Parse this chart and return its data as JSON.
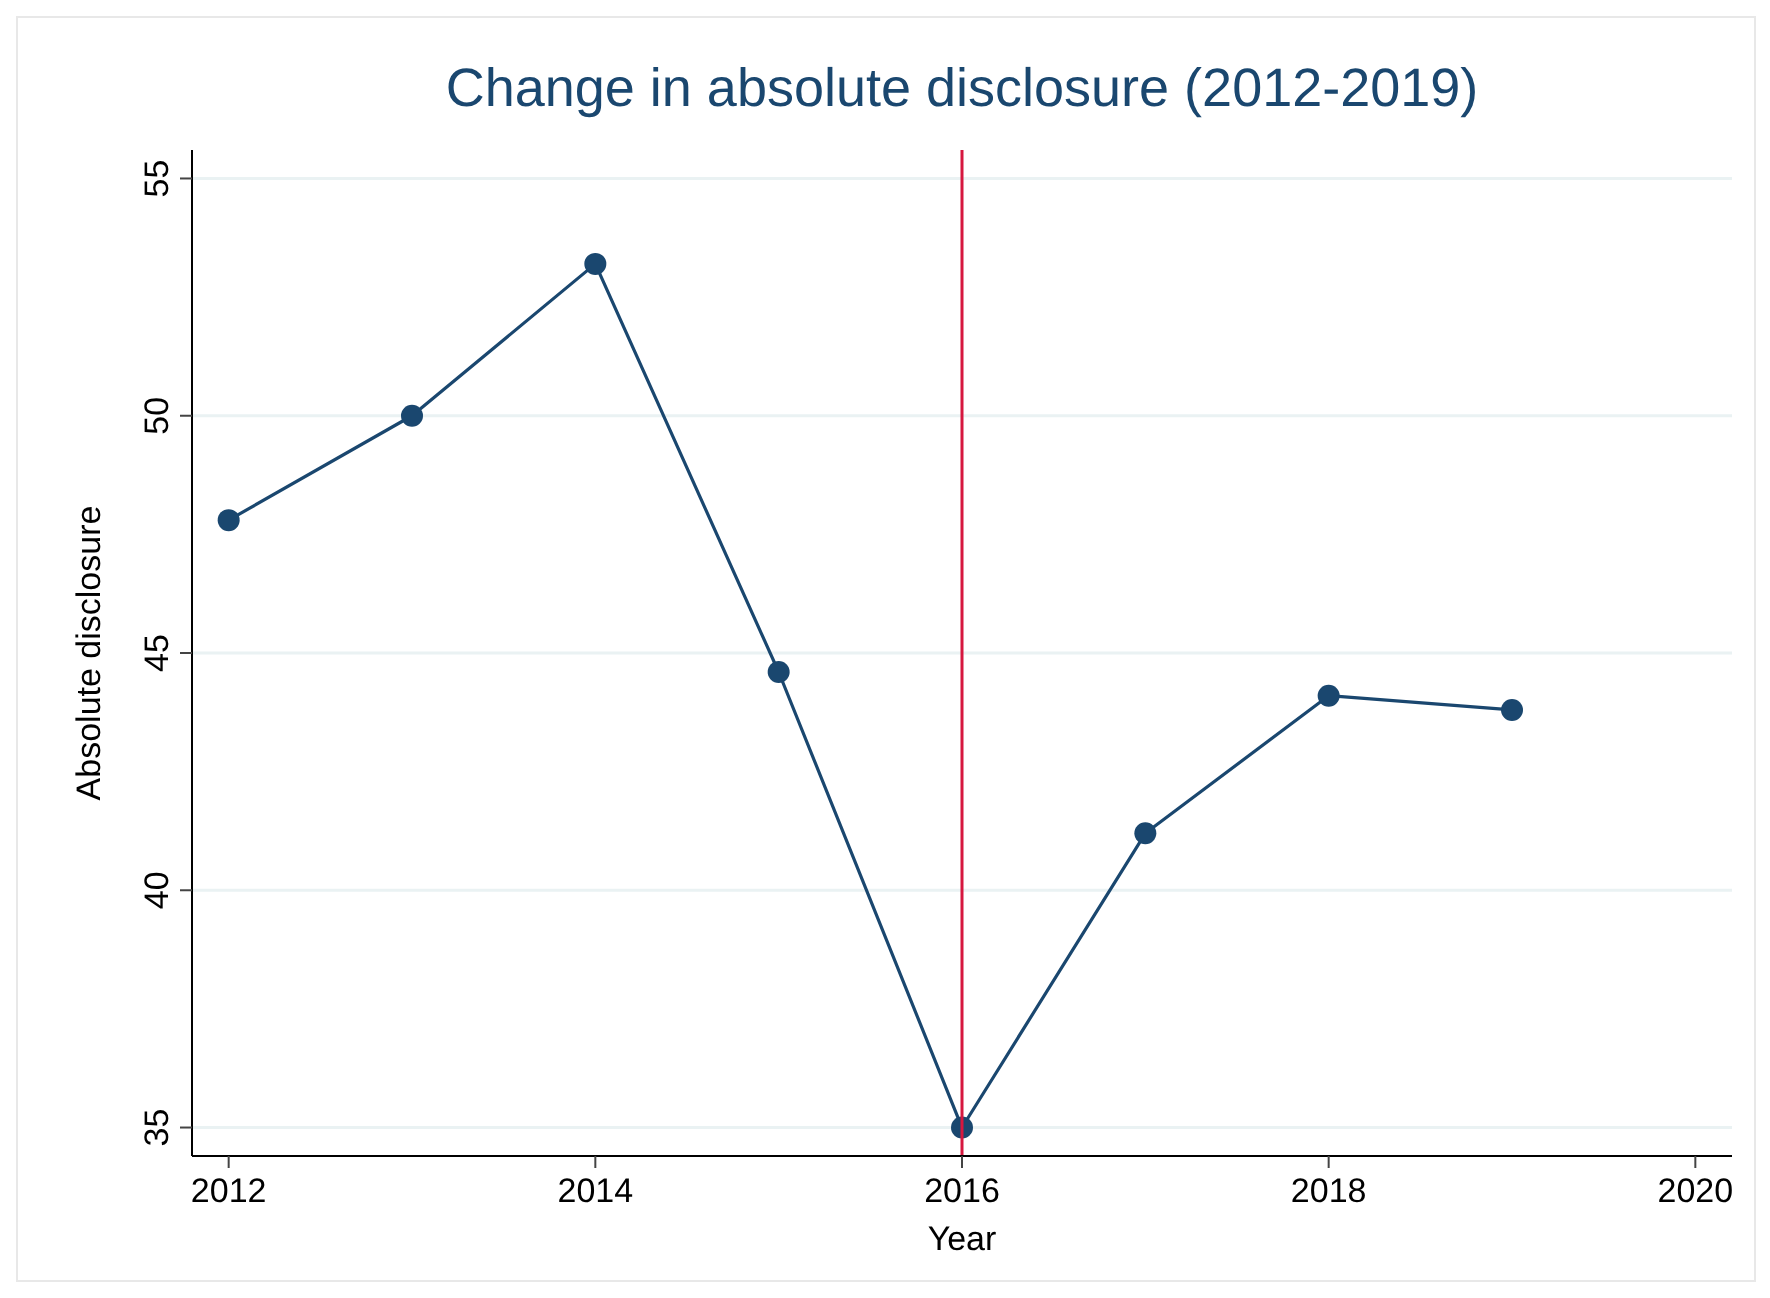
{
  "chart_data": {
    "type": "line",
    "title": "Change in absolute disclosure (2012-2019)",
    "xlabel": "Year",
    "ylabel": "Absolute disclosure",
    "x": [
      2012,
      2013,
      2014,
      2015,
      2016,
      2017,
      2018,
      2019
    ],
    "series": [
      {
        "color": "#1a476f",
        "values": [
          47.8,
          50.0,
          53.2,
          44.6,
          35.0,
          41.2,
          44.1,
          43.8
        ]
      }
    ],
    "xlim": [
      2011.8,
      2020.2
    ],
    "xticks": [
      2012,
      2014,
      2016,
      2018,
      2020
    ],
    "ylim": [
      34.4,
      55.6
    ],
    "yticks": [
      35,
      40,
      45,
      50,
      55
    ],
    "ref_lines": [
      {
        "axis": "x",
        "value": 2016,
        "color": "#d6173f"
      }
    ],
    "grid": "y",
    "marker": "circle",
    "line_style": "solid"
  }
}
